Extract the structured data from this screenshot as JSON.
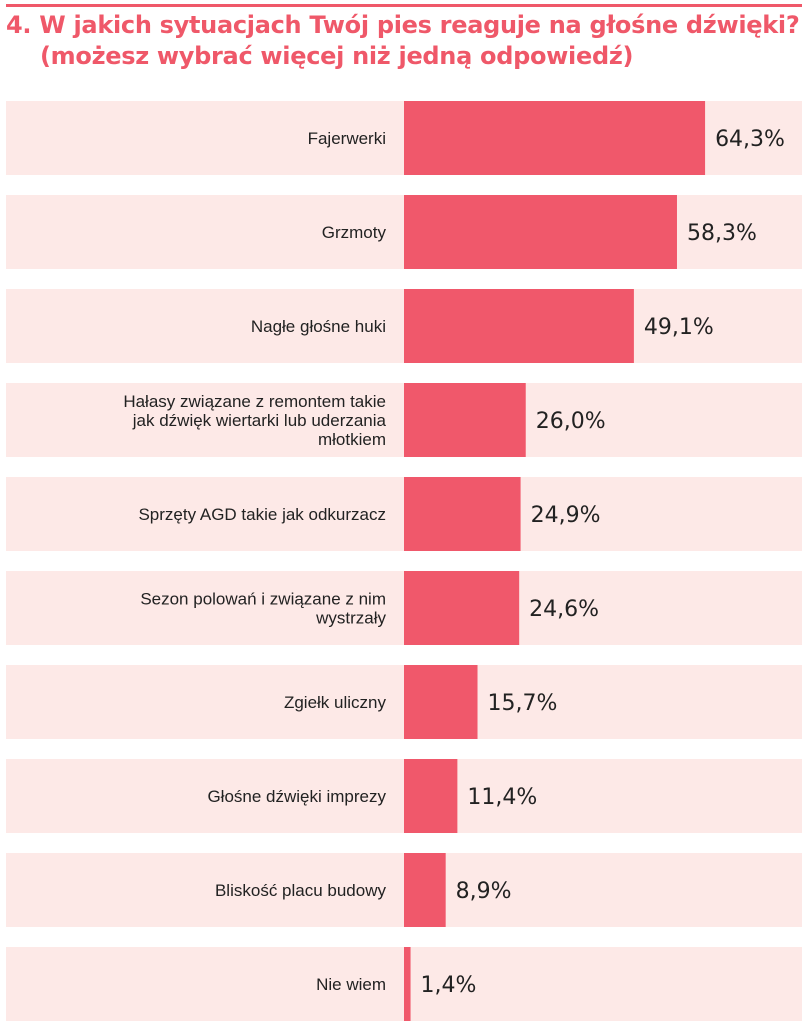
{
  "colors": {
    "accent": "#ef5869",
    "bar": "#f0586b",
    "row_background": "#fde9e7",
    "text": "#222222"
  },
  "chart_data": {
    "type": "bar",
    "orientation": "horizontal",
    "title": "4. W jakich sytuacjach Twój pies reaguje na głośne dźwięki?",
    "subtitle": "(możesz wybrać więcej niż jedną odpowiedź)",
    "categories": [
      "Fajerwerki",
      "Grzmoty",
      "Nagłe głośne huki",
      "Hałasy związane z remontem takie jak dźwięk wiertarki lub uderzania młotkiem",
      "Sprzęty AGD takie jak odkurzacz",
      "Sezon polowań i związane z nim wystrzały",
      "Zgiełk uliczny",
      "Głośne dźwięki imprezy",
      "Bliskość placu budowy",
      "Nie wiem"
    ],
    "category_lines": [
      [
        "Fajerwerki"
      ],
      [
        "Grzmoty"
      ],
      [
        "Nagłe głośne huki"
      ],
      [
        "Hałasy związane z remontem takie",
        "jak dźwięk wiertarki lub uderzania",
        "młotkiem"
      ],
      [
        "Sprzęty AGD takie jak odkurzacz"
      ],
      [
        "Sezon polowań i związane z nim",
        "wystrzały"
      ],
      [
        "Zgiełk uliczny"
      ],
      [
        "Głośne dźwięki imprezy"
      ],
      [
        "Bliskość placu budowy"
      ],
      [
        "Nie wiem"
      ]
    ],
    "values": [
      64.3,
      58.3,
      49.1,
      26.0,
      24.9,
      24.6,
      15.7,
      11.4,
      8.9,
      1.4
    ],
    "value_labels": [
      "64,3%",
      "58,3%",
      "49,1%",
      "26,0%",
      "24,9%",
      "24,6%",
      "15,7%",
      "11,4%",
      "8,9%",
      "1,4%"
    ],
    "unit": "%",
    "xlim": [
      0,
      85
    ],
    "grid": false,
    "legend": "none"
  }
}
